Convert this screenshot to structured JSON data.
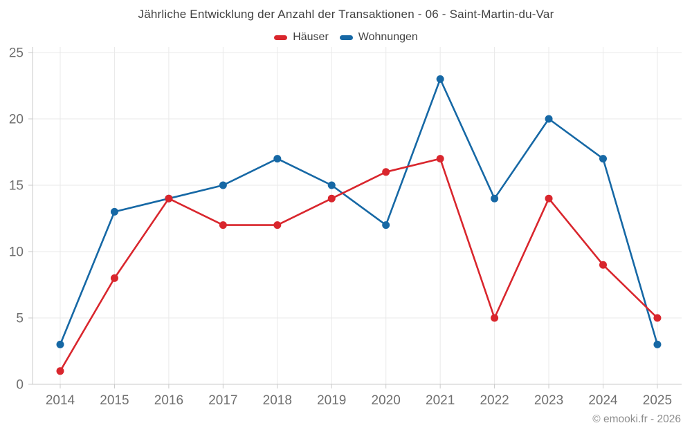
{
  "chart": {
    "title": "Jährliche Entwicklung der Anzahl der Transaktionen - 06 - Saint-Martin-du-Var"
  },
  "footer": {
    "copyright": "© emooki.fr - 2026"
  },
  "chart_data": {
    "type": "line",
    "title": "Jährliche Entwicklung der Anzahl der Transaktionen - 06 - Saint-Martin-du-Var",
    "categories": [
      "2014",
      "2015",
      "2016",
      "2017",
      "2018",
      "2019",
      "2020",
      "2021",
      "2022",
      "2023",
      "2024",
      "2025"
    ],
    "series": [
      {
        "name": "Häuser",
        "color": "#d9262d",
        "values": [
          1,
          8,
          14,
          12,
          12,
          14,
          16,
          17,
          5,
          14,
          9,
          5
        ]
      },
      {
        "name": "Wohnungen",
        "color": "#1668a5",
        "values": [
          3,
          13,
          14,
          15,
          17,
          15,
          12,
          23,
          14,
          20,
          17,
          3
        ]
      }
    ],
    "xlabel": "",
    "ylabel": "",
    "ylim": [
      0,
      25
    ],
    "yticks": [
      0,
      5,
      10,
      15,
      20,
      25
    ],
    "grid": true,
    "legend_position": "top",
    "grid_color": "#e9e9e9",
    "axis_color": "#c9c9c9",
    "tick_label_color": "#6f6f6f"
  }
}
